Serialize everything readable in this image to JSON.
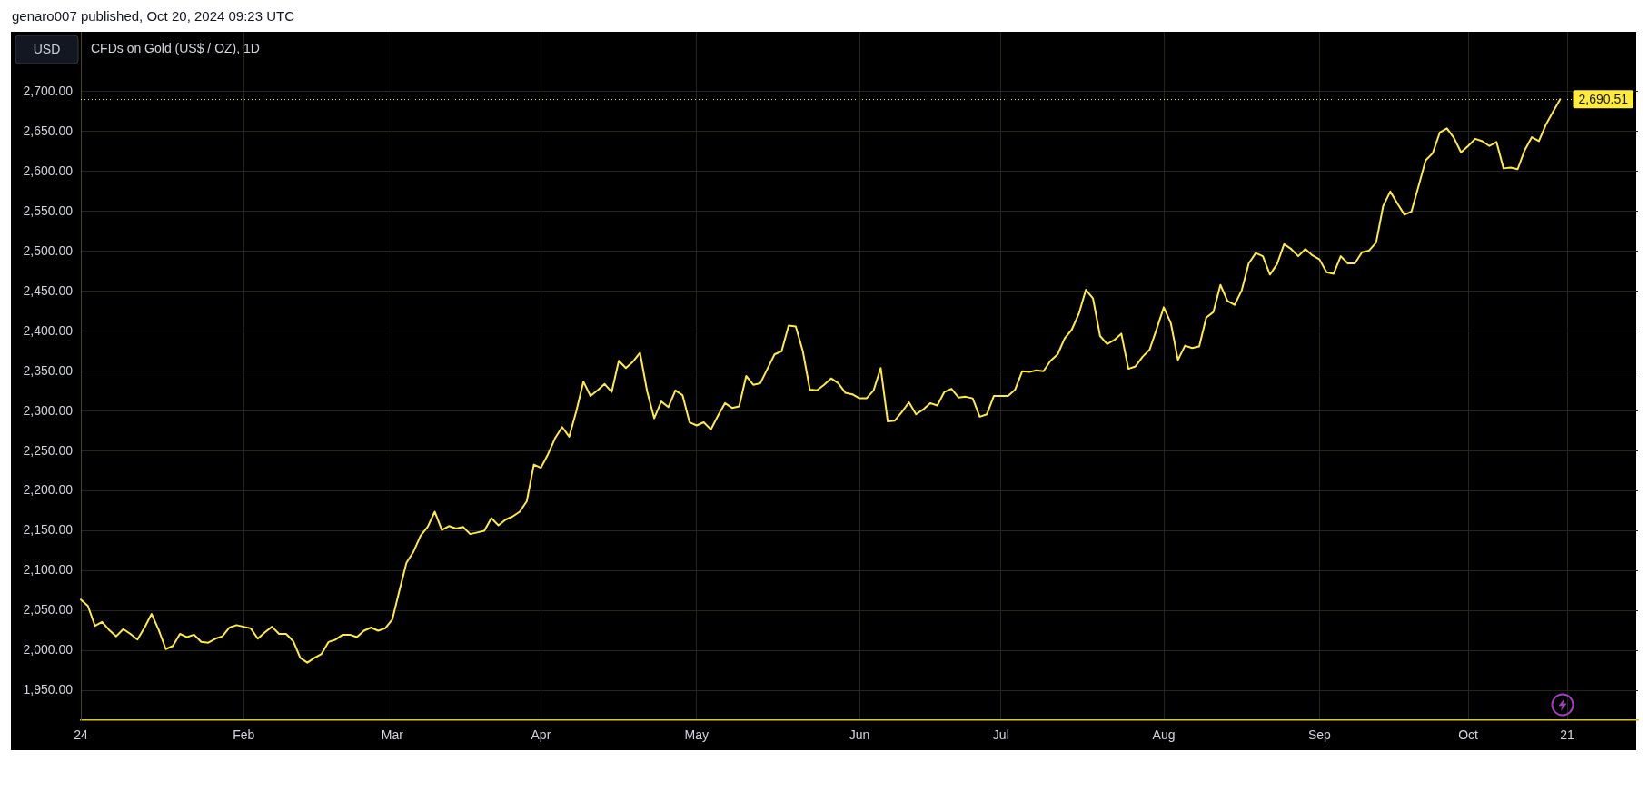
{
  "chart_data": {
    "type": "line",
    "title": "CFDs on Gold (US$ / OZ), 1D",
    "ylabel": "USD",
    "annotations": [
      "genaro007 published, Oct 20, 2024 09:23 UTC"
    ],
    "categories": [
      "24",
      null,
      null,
      null,
      null,
      null,
      null,
      null,
      null,
      null,
      null,
      null,
      null,
      null,
      null,
      null,
      null,
      null,
      null,
      null,
      null,
      null,
      null,
      "Feb",
      null,
      null,
      null,
      null,
      null,
      null,
      null,
      null,
      null,
      null,
      null,
      null,
      null,
      null,
      null,
      null,
      null,
      null,
      null,
      null,
      "Mar",
      null,
      null,
      null,
      null,
      null,
      null,
      null,
      null,
      null,
      null,
      null,
      null,
      null,
      null,
      null,
      null,
      null,
      null,
      null,
      null,
      "Apr",
      null,
      null,
      null,
      null,
      null,
      null,
      null,
      null,
      null,
      null,
      null,
      null,
      null,
      null,
      null,
      null,
      null,
      null,
      null,
      null,
      null,
      "May",
      null,
      null,
      null,
      null,
      null,
      null,
      null,
      null,
      null,
      null,
      null,
      null,
      null,
      null,
      null,
      null,
      null,
      null,
      null,
      null,
      null,
      null,
      "Jun",
      null,
      null,
      null,
      null,
      null,
      null,
      null,
      null,
      null,
      null,
      null,
      null,
      null,
      null,
      null,
      null,
      null,
      null,
      null,
      "Jul",
      null,
      null,
      null,
      null,
      null,
      null,
      null,
      null,
      null,
      null,
      null,
      null,
      null,
      null,
      null,
      null,
      null,
      null,
      null,
      null,
      null,
      null,
      "Aug",
      null,
      null,
      null,
      null,
      null,
      null,
      null,
      null,
      null,
      null,
      null,
      null,
      null,
      null,
      null,
      null,
      null,
      null,
      null,
      null,
      null,
      "Sep",
      null,
      null,
      null,
      null,
      null,
      null,
      null,
      null,
      null,
      null,
      null,
      null,
      null,
      null,
      null,
      null,
      null,
      null,
      null,
      null,
      "Oct",
      null,
      null,
      null,
      null,
      null,
      null,
      null,
      null,
      null,
      null,
      null,
      null,
      null,
      "21",
      null,
      null,
      null,
      null,
      null,
      null,
      null,
      null,
      null,
      null
    ],
    "values": [
      2064,
      2056,
      2031,
      2036,
      2026,
      2018,
      2027,
      2021,
      2014,
      2029,
      2046,
      2026,
      2002,
      2006,
      2021,
      2017,
      2020,
      2011,
      2010,
      2015,
      2018,
      2029,
      2032,
      2030,
      2028,
      2015,
      2023,
      2030,
      2021,
      2021,
      2012,
      1991,
      1985,
      1991,
      1996,
      2011,
      2014,
      2020,
      2020,
      2017,
      2025,
      2029,
      2025,
      2028,
      2039,
      2075,
      2110,
      2124,
      2144,
      2155,
      2174,
      2151,
      2156,
      2153,
      2155,
      2146,
      2148,
      2150,
      2166,
      2157,
      2164,
      2168,
      2174,
      2187,
      2233,
      2229,
      2246,
      2266,
      2280,
      2268,
      2300,
      2337,
      2319,
      2326,
      2334,
      2324,
      2363,
      2354,
      2362,
      2373,
      2325,
      2291,
      2312,
      2305,
      2326,
      2320,
      2286,
      2282,
      2286,
      2277,
      2294,
      2310,
      2304,
      2306,
      2344,
      2333,
      2335,
      2353,
      2371,
      2375,
      2407,
      2406,
      2375,
      2327,
      2326,
      2333,
      2341,
      2335,
      2323,
      2321,
      2316,
      2316,
      2326,
      2354,
      2287,
      2288,
      2299,
      2311,
      2296,
      2302,
      2310,
      2307,
      2324,
      2328,
      2317,
      2318,
      2316,
      2293,
      2296,
      2319,
      2319,
      2319,
      2327,
      2350,
      2349,
      2351,
      2350,
      2363,
      2371,
      2391,
      2402,
      2422,
      2452,
      2441,
      2394,
      2384,
      2389,
      2397,
      2353,
      2356,
      2368,
      2377,
      2403,
      2430,
      2410,
      2364,
      2382,
      2379,
      2381,
      2417,
      2424,
      2458,
      2438,
      2433,
      2451,
      2485,
      2498,
      2494,
      2471,
      2484,
      2509,
      2503,
      2494,
      2503,
      2495,
      2490,
      2474,
      2472,
      2494,
      2485,
      2485,
      2499,
      2501,
      2511,
      2557,
      2575,
      2560,
      2546,
      2550,
      2582,
      2614,
      2623,
      2649,
      2654,
      2642,
      2624,
      2632,
      2641,
      2638,
      2632,
      2637,
      2604,
      2605,
      2603,
      2627,
      2643,
      2638,
      2659,
      2675,
      2690.51,
      null,
      null,
      null,
      null,
      null,
      null,
      null,
      null,
      null,
      null,
      null
    ],
    "color": "#ffeb3b",
    "ylim": [
      1913,
      2775
    ],
    "yticks": [
      {
        "value": 1950,
        "label": "1,950.00"
      },
      {
        "value": 2000,
        "label": "2,000.00"
      },
      {
        "value": 2050,
        "label": "2,050.00"
      },
      {
        "value": 2100,
        "label": "2,100.00"
      },
      {
        "value": 2150,
        "label": "2,150.00"
      },
      {
        "value": 2200,
        "label": "2,200.00"
      },
      {
        "value": 2250,
        "label": "2,250.00"
      },
      {
        "value": 2300,
        "label": "2,300.00"
      },
      {
        "value": 2350,
        "label": "2,350.00"
      },
      {
        "value": 2400,
        "label": "2,400.00"
      },
      {
        "value": 2450,
        "label": "2,450.00"
      },
      {
        "value": 2500,
        "label": "2,500.00"
      },
      {
        "value": 2550,
        "label": "2,550.00"
      },
      {
        "value": 2600,
        "label": "2,600.00"
      },
      {
        "value": 2650,
        "label": "2,650.00"
      },
      {
        "value": 2700,
        "label": "2,700.00"
      }
    ],
    "ref_lines": [
      {
        "axis": "y",
        "value": 2690.51,
        "label": "2,690.51",
        "color": "#ffeb3b",
        "line_style": "dotted"
      }
    ],
    "grid": true,
    "marker": "none",
    "line_style": "solid"
  }
}
